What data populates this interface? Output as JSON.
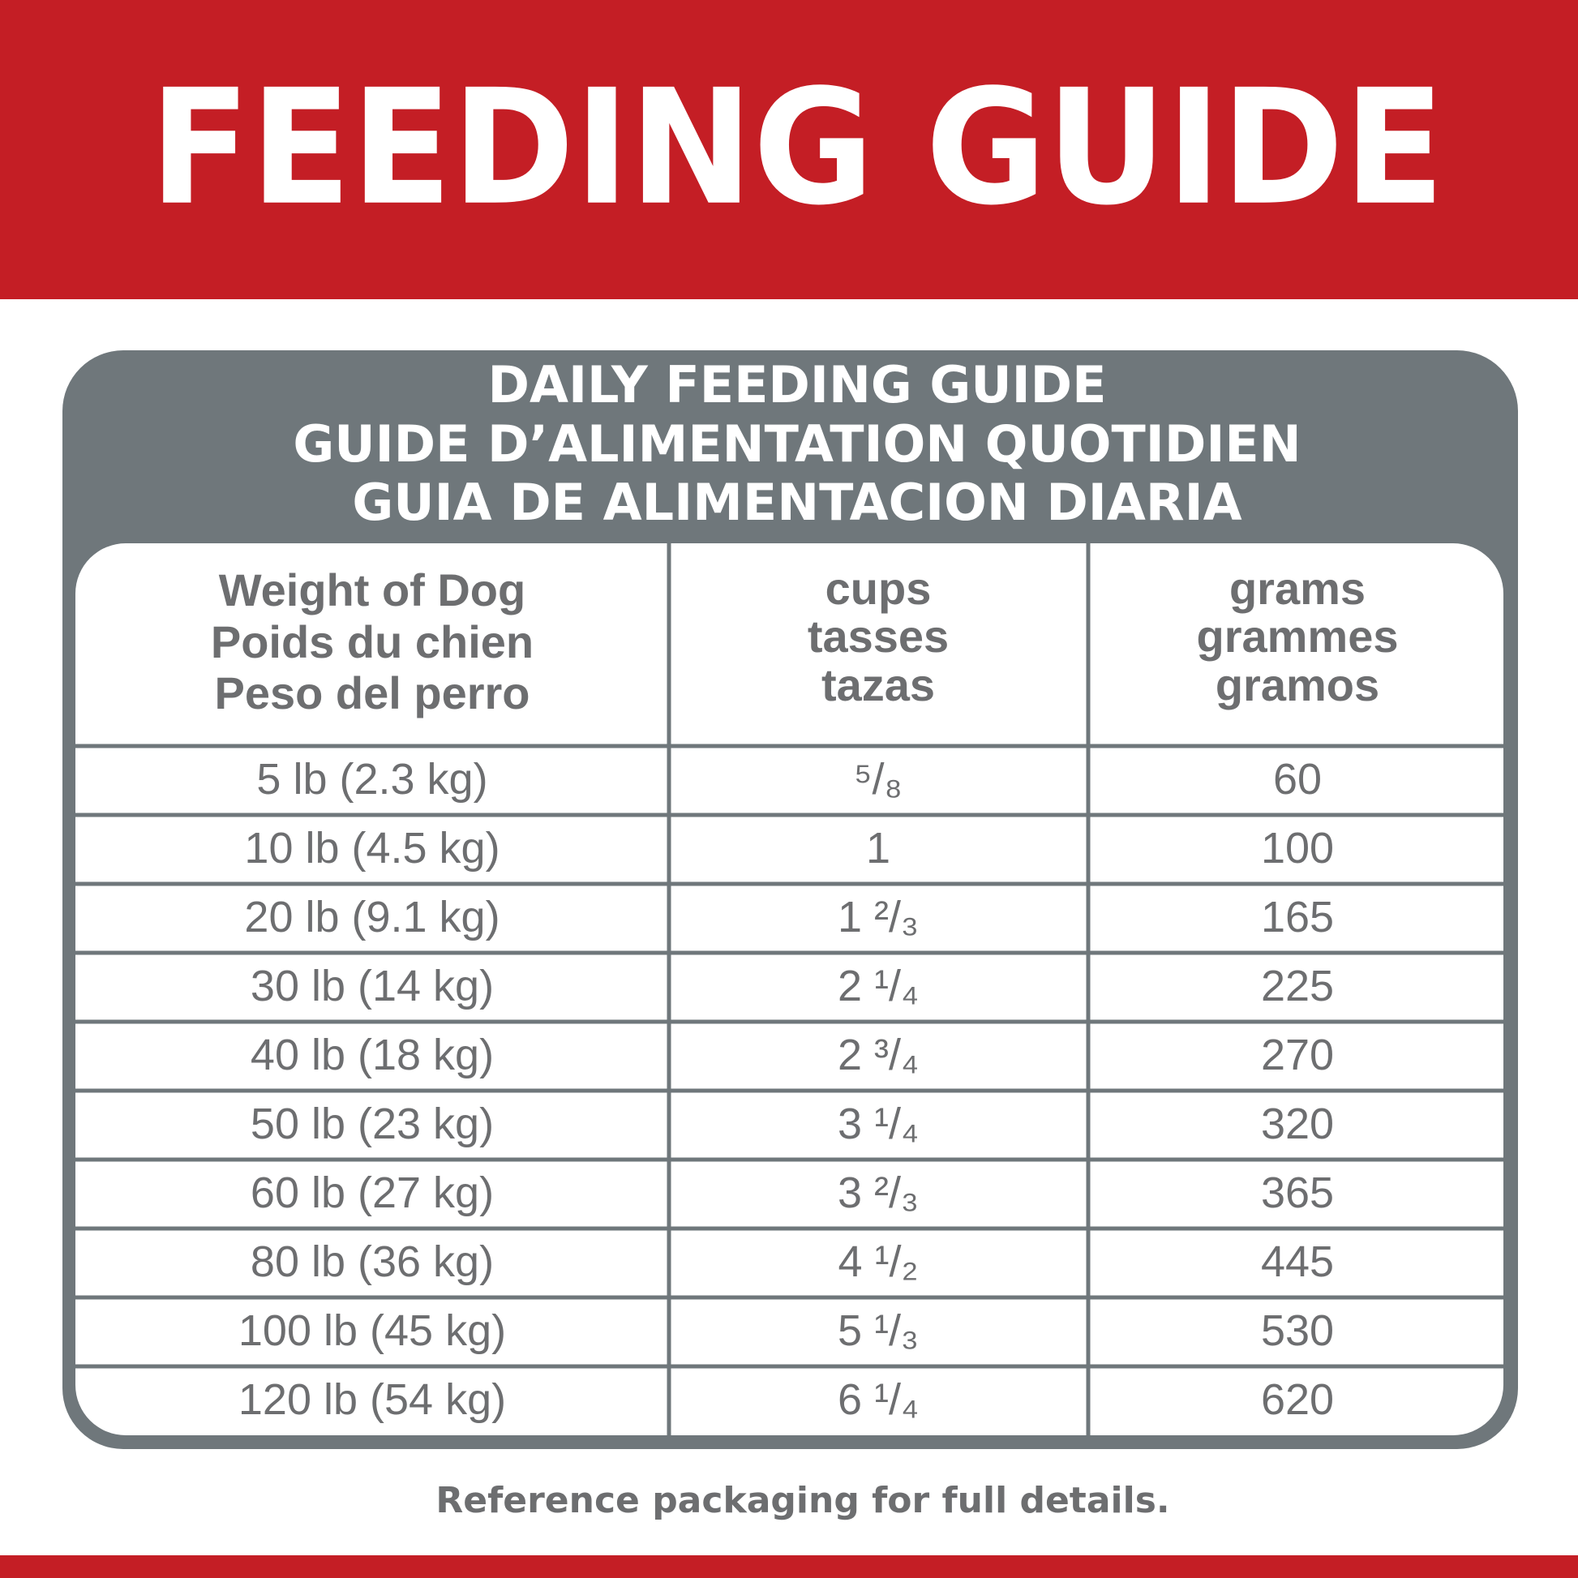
{
  "header": {
    "title": "FEEDING GUIDE"
  },
  "table": {
    "title": [
      "DAILY FEEDING GUIDE",
      "GUIDE D’ALIMENTATION QUOTIDIEN",
      "GUIA DE ALIMENTACION DIARIA"
    ],
    "headers": [
      [
        "Weight of Dog",
        "Poids du chien",
        "Peso del perro"
      ],
      [
        "cups",
        "tasses",
        "tazas"
      ],
      [
        "grams",
        "grammes",
        "gramos"
      ]
    ],
    "rows": [
      [
        "5 lb (2.3 kg)",
        "⁵/₈",
        "60"
      ],
      [
        "10 lb (4.5 kg)",
        "1",
        "100"
      ],
      [
        "20 lb (9.1 kg)",
        "1 ²/₃",
        "165"
      ],
      [
        "30 lb (14 kg)",
        "2 ¹/₄",
        "225"
      ],
      [
        "40 lb (18 kg)",
        "2 ³/₄",
        "270"
      ],
      [
        "50 lb (23 kg)",
        "3 ¹/₄",
        "320"
      ],
      [
        "60 lb (27 kg)",
        "3 ²/₃",
        "365"
      ],
      [
        "80 lb (36 kg)",
        "4 ¹/₂",
        "445"
      ],
      [
        "100 lb (45 kg)",
        "5 ¹/₃",
        "530"
      ],
      [
        "120 lb (54 kg)",
        "6 ¹/₄",
        "620"
      ]
    ]
  },
  "footer": {
    "note": "Reference packaging for full details."
  }
}
